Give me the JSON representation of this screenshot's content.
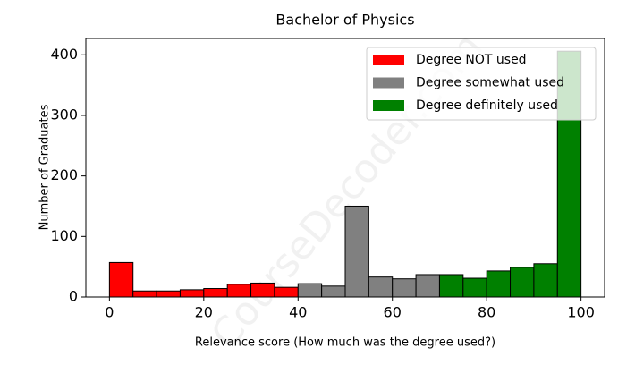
{
  "chart_data": {
    "type": "histogram",
    "title": "Bachelor of Physics",
    "x_label": "Relevance score (How much was the degree used?)",
    "y_label": "Number of Graduates",
    "watermark": "CourseDecoder.com",
    "xlim": [
      -5,
      105
    ],
    "xticks": [
      0,
      20,
      40,
      60,
      80,
      100
    ],
    "ylim": [
      0,
      427
    ],
    "yticks": [
      0,
      100,
      200,
      300,
      400
    ],
    "grid": false,
    "legend": "upper right",
    "series": [
      {
        "name": "Degree NOT used",
        "color": "#ff0000",
        "bins": [
          0,
          5,
          10,
          15,
          20,
          25,
          30,
          35,
          40
        ],
        "values": [
          57,
          10,
          10,
          12,
          14,
          21,
          23,
          16
        ]
      },
      {
        "name": "Degree somewhat used",
        "color": "#808080",
        "bins": [
          40,
          45,
          50,
          55,
          60,
          65,
          70
        ],
        "values": [
          22,
          18,
          150,
          33,
          30,
          37
        ]
      },
      {
        "name": "Degree definitely used",
        "color": "#008000",
        "bins": [
          70,
          75,
          80,
          85,
          90,
          95,
          100
        ],
        "values": [
          37,
          31,
          43,
          49,
          55,
          406
        ]
      }
    ]
  }
}
